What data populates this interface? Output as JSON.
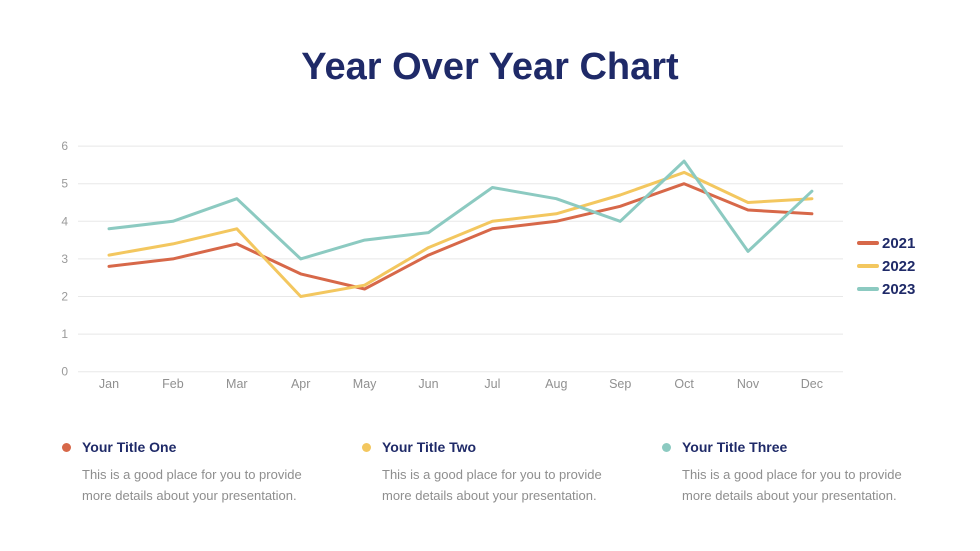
{
  "slide": {
    "title": "Year Over Year Chart",
    "colors": {
      "navy": "#1F2A68",
      "orange": "#D76849",
      "yellow": "#F3C75F",
      "teal": "#8CCAC1",
      "body_text": "#8E8E8E",
      "axis_text": "#9A9A9A",
      "gridline": "#E8E8E8",
      "background": "#FFFFFF"
    }
  },
  "chart_data": {
    "type": "line",
    "title": "",
    "xlabel": "",
    "ylabel": "",
    "categories": [
      "Jan",
      "Feb",
      "Mar",
      "Apr",
      "May",
      "Jun",
      "Jul",
      "Aug",
      "Sep",
      "Oct",
      "Nov",
      "Dec"
    ],
    "series": [
      {
        "name": "2021",
        "color": "#D76849",
        "values": [
          2.8,
          3.0,
          3.4,
          2.6,
          2.2,
          3.1,
          3.8,
          4.0,
          4.4,
          5.0,
          4.3,
          4.2
        ]
      },
      {
        "name": "2022",
        "color": "#F3C75F",
        "values": [
          3.1,
          3.4,
          3.8,
          2.0,
          2.3,
          3.3,
          4.0,
          4.2,
          4.7,
          5.3,
          4.5,
          4.6
        ]
      },
      {
        "name": "2023",
        "color": "#8CCAC1",
        "values": [
          3.8,
          4.0,
          4.6,
          3.0,
          3.5,
          3.7,
          4.9,
          4.6,
          4.0,
          5.6,
          3.2,
          4.8
        ]
      }
    ],
    "ylim": [
      0,
      6
    ],
    "yticks": [
      0,
      1,
      2,
      3,
      4,
      5,
      6
    ],
    "grid": "horizontal",
    "legend_position": "right"
  },
  "blocks": [
    {
      "title": "Your Title One",
      "color": "#D76849",
      "description_lines": [
        "This is a good place for you to provide",
        "more details about your presentation."
      ]
    },
    {
      "title": "Your Title Two",
      "color": "#F3C75F",
      "description_lines": [
        "This is a good place for you to provide",
        "more details about your presentation."
      ]
    },
    {
      "title": "Your Title Three",
      "color": "#8CCAC1",
      "description_lines": [
        "This is a good place for you to provide",
        "more details about your presentation."
      ]
    }
  ]
}
